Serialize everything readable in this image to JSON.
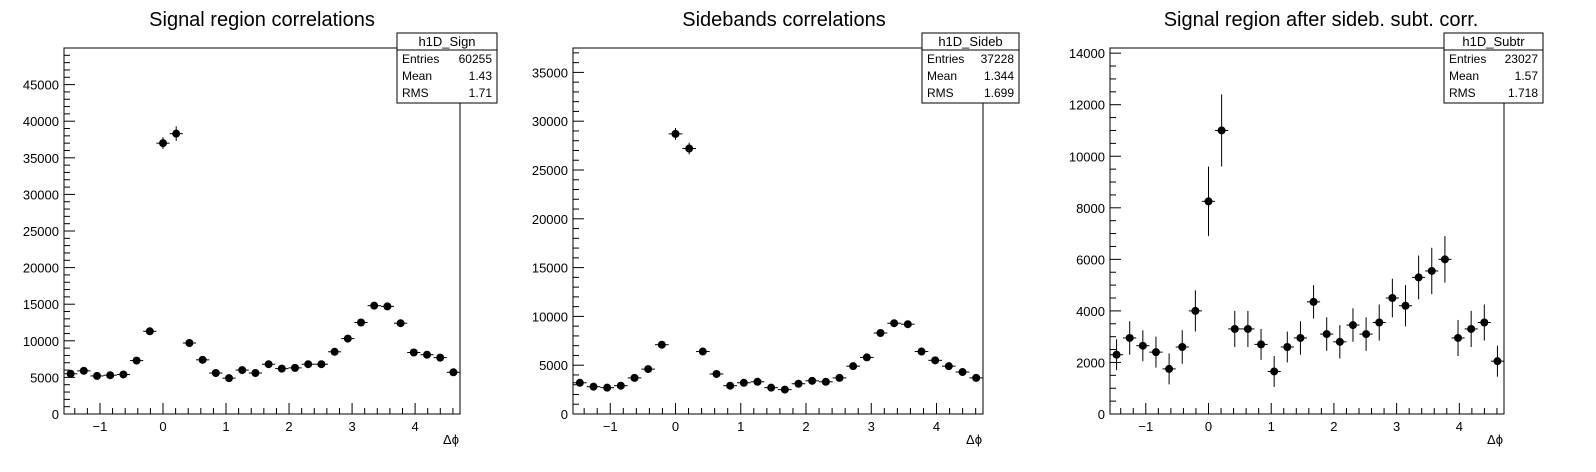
{
  "chart_data": [
    {
      "type": "scatter",
      "title": "Signal region correlations",
      "xlabel": "Δϕ",
      "ylabel": "",
      "xlim": [
        -1.5708,
        4.7124
      ],
      "ylim": [
        0,
        50000
      ],
      "xticks": [
        -1,
        0,
        1,
        2,
        3,
        4
      ],
      "yticks": [
        0,
        5000,
        10000,
        15000,
        20000,
        25000,
        30000,
        35000,
        40000,
        45000
      ],
      "grid": false,
      "stats_box": {
        "name": "h1D_Sign",
        "rows": [
          [
            "Entries",
            "60255"
          ],
          [
            "Mean",
            "1.43"
          ],
          [
            "RMS",
            "1.71"
          ]
        ]
      },
      "series": [
        {
          "x": [
            -1.4661,
            -1.2566,
            -1.0472,
            -0.8378,
            -0.6283,
            -0.4189,
            -0.2094,
            0.0,
            0.2094,
            0.4189,
            0.6283,
            0.8378,
            1.0472,
            1.2566,
            1.4661,
            1.6755,
            1.885,
            2.0944,
            2.3038,
            2.5133,
            2.7227,
            2.9322,
            3.1416,
            3.351,
            3.5605,
            3.7699,
            3.9794,
            4.1888,
            4.3982,
            4.6077
          ],
          "y": [
            5500,
            5900,
            5200,
            5300,
            5400,
            7300,
            11300,
            37000,
            38300,
            9700,
            7400,
            5600,
            4900,
            6000,
            5600,
            6800,
            6200,
            6300,
            6800,
            6800,
            8500,
            10300,
            12500,
            14800,
            14700,
            12400,
            8400,
            8100,
            7700,
            5700
          ],
          "yerr": [
            200,
            250,
            200,
            200,
            250,
            300,
            400,
            800,
            1000,
            300,
            250,
            250,
            200,
            250,
            250,
            250,
            250,
            250,
            250,
            250,
            300,
            300,
            400,
            500,
            500,
            400,
            300,
            300,
            300,
            250
          ]
        }
      ]
    },
    {
      "type": "scatter",
      "title": "Sidebands correlations",
      "xlabel": "Δϕ",
      "ylabel": "",
      "xlim": [
        -1.5708,
        4.7124
      ],
      "ylim": [
        0,
        37500
      ],
      "xticks": [
        -1,
        0,
        1,
        2,
        3,
        4
      ],
      "yticks": [
        0,
        5000,
        10000,
        15000,
        20000,
        25000,
        30000,
        35000
      ],
      "grid": false,
      "stats_box": {
        "name": "h1D_Sideb",
        "rows": [
          [
            "Entries",
            "37228"
          ],
          [
            "Mean",
            "1.344"
          ],
          [
            "RMS",
            "1.699"
          ]
        ]
      },
      "series": [
        {
          "x": [
            -1.4661,
            -1.2566,
            -1.0472,
            -0.8378,
            -0.6283,
            -0.4189,
            -0.2094,
            0.0,
            0.2094,
            0.4189,
            0.6283,
            0.8378,
            1.0472,
            1.2566,
            1.4661,
            1.6755,
            1.885,
            2.0944,
            2.3038,
            2.5133,
            2.7227,
            2.9322,
            3.1416,
            3.351,
            3.5605,
            3.7699,
            3.9794,
            4.1888,
            4.3982,
            4.6077
          ],
          "y": [
            3200,
            2800,
            2700,
            2900,
            3700,
            4600,
            7100,
            28700,
            27200,
            6400,
            4100,
            2900,
            3200,
            3300,
            2700,
            2500,
            3100,
            3400,
            3300,
            3700,
            4900,
            5800,
            8300,
            9300,
            9200,
            6400,
            5500,
            4900,
            4300,
            3700
          ],
          "yerr": [
            150,
            150,
            150,
            150,
            150,
            200,
            250,
            600,
            600,
            200,
            150,
            150,
            150,
            150,
            150,
            150,
            150,
            150,
            150,
            150,
            200,
            200,
            250,
            300,
            300,
            200,
            200,
            150,
            150,
            150
          ]
        }
      ]
    },
    {
      "type": "scatter",
      "title": "Signal region after sideb. subt. corr.",
      "xlabel": "Δϕ",
      "ylabel": "",
      "xlim": [
        -1.5708,
        4.7124
      ],
      "ylim": [
        0,
        14200
      ],
      "xticks": [
        -1,
        0,
        1,
        2,
        3,
        4
      ],
      "yticks": [
        0,
        2000,
        4000,
        6000,
        8000,
        10000,
        12000,
        14000
      ],
      "grid": false,
      "stats_box": {
        "name": "h1D_Subtr",
        "rows": [
          [
            "Entries",
            "23027"
          ],
          [
            "Mean",
            "1.57"
          ],
          [
            "RMS",
            "1.718"
          ]
        ]
      },
      "series": [
        {
          "x": [
            -1.4661,
            -1.2566,
            -1.0472,
            -0.8378,
            -0.6283,
            -0.4189,
            -0.2094,
            0.0,
            0.2094,
            0.4189,
            0.6283,
            0.8378,
            1.0472,
            1.2566,
            1.4661,
            1.6755,
            1.885,
            2.0944,
            2.3038,
            2.5133,
            2.7227,
            2.9322,
            3.1416,
            3.351,
            3.5605,
            3.7699,
            3.9794,
            4.1888,
            4.3982,
            4.6077
          ],
          "y": [
            2300,
            2950,
            2650,
            2400,
            1750,
            2600,
            4000,
            8250,
            11000,
            3300,
            3300,
            2700,
            1650,
            2600,
            2950,
            4350,
            3100,
            2800,
            3450,
            3100,
            3550,
            4500,
            4200,
            5300,
            5550,
            6000,
            2950,
            3300,
            3550,
            2050
          ],
          "yerr": [
            600,
            650,
            600,
            600,
            600,
            650,
            800,
            1350,
            1400,
            700,
            700,
            600,
            600,
            600,
            650,
            650,
            650,
            650,
            650,
            650,
            700,
            750,
            800,
            850,
            900,
            900,
            700,
            700,
            700,
            600
          ]
        }
      ]
    }
  ]
}
